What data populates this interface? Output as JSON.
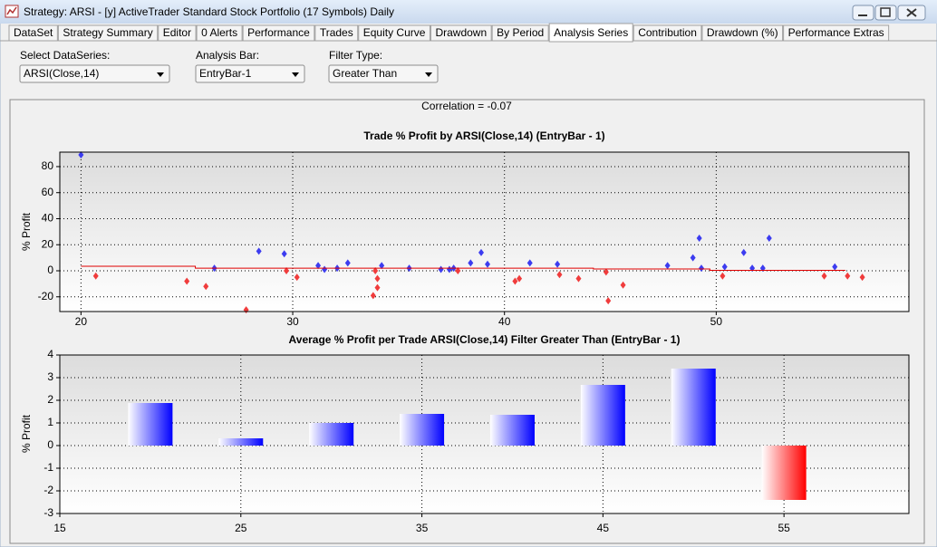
{
  "window": {
    "title": "Strategy: ARSI - [y] ActiveTrader Standard Stock Portfolio (17 Symbols) Daily"
  },
  "tabs": [
    "DataSet",
    "Strategy Summary",
    "Editor",
    "0 Alerts",
    "Performance",
    "Trades",
    "Equity Curve",
    "Drawdown",
    "By Period",
    "Analysis Series",
    "Contribution",
    "Drawdown (%)",
    "Performance Extras"
  ],
  "active_tab": 9,
  "controls": [
    {
      "label": "Select DataSeries:",
      "value": "ARSI(Close,14)"
    },
    {
      "label": "Analysis Bar:",
      "value": "EntryBar-1"
    },
    {
      "label": "Filter Type:",
      "value": "Greater Than"
    }
  ],
  "correlation": "Correlation = -0.07",
  "chart_data": [
    {
      "type": "scatter",
      "title": "Trade % Profit by ARSI(Close,14) (EntryBar - 1)",
      "ylabel": "% Profit",
      "xlim": [
        19,
        59.1
      ],
      "ylim": [
        -31.3,
        91.1
      ],
      "xticks": [
        20,
        30,
        40,
        50
      ],
      "yticks": [
        -20,
        0,
        20,
        40,
        60,
        80
      ],
      "grid": true,
      "series": [
        {
          "color": "#3c3cf0",
          "x": [
            20,
            26.3,
            28.4,
            29.6,
            31.2,
            31.5,
            32.1,
            32.6,
            34.2,
            35.5,
            37,
            37.4,
            37.6,
            38.4,
            38.9,
            39.2,
            41.2,
            42.5,
            47.7,
            48.9,
            49.2,
            49.3,
            50.4,
            51.3,
            51.7,
            52.2,
            52.5,
            55.6
          ],
          "values": [
            89,
            2,
            15,
            13,
            4,
            1,
            2,
            6,
            4,
            2,
            1,
            1,
            2,
            6,
            14,
            5,
            6,
            5,
            4,
            10,
            25,
            2,
            3,
            14,
            2,
            2,
            25,
            3
          ]
        },
        {
          "color": "#f03c3c",
          "x": [
            20.7,
            25,
            25.9,
            27.8,
            29.7,
            30.2,
            33.8,
            33.9,
            34,
            34,
            37.8,
            40.5,
            40.7,
            42.6,
            43.5,
            44.8,
            44.9,
            45.6,
            50.3,
            55.1,
            56.2,
            56.9
          ],
          "values": [
            -4,
            -8,
            -12,
            -30,
            0,
            -5,
            -19,
            0,
            -6,
            -13,
            0,
            -8,
            -6,
            -3,
            -6,
            -1,
            -23,
            -11,
            -4,
            -4,
            -4,
            -5
          ]
        },
        {
          "type": "line",
          "color": "#e00000",
          "x": [
            20,
            25.4,
            25.4,
            44.2,
            44.2,
            49.7,
            49.7,
            56.1
          ],
          "values": [
            3.5,
            3.5,
            2,
            2,
            1.4,
            1.4,
            0.3,
            0.3
          ]
        }
      ]
    },
    {
      "type": "bar",
      "title": "Average % Profit per Trade ARSI(Close,14) Filter Greater Than (EntryBar - 1)",
      "ylabel": "% Profit",
      "x": [
        20,
        25,
        30,
        35,
        40,
        45,
        50,
        55
      ],
      "values": [
        1.88,
        0.32,
        1.0,
        1.4,
        1.36,
        2.68,
        3.4,
        -2.4
      ],
      "color": "#0000ff",
      "negative_color": "#ff0000",
      "xlim": [
        15,
        61.9
      ],
      "ylim": [
        -3,
        4
      ],
      "xticks": [
        15,
        25,
        35,
        45,
        55
      ],
      "yticks": [
        -3,
        -2,
        -1,
        0,
        1,
        2,
        3,
        4
      ],
      "grid": true
    }
  ]
}
